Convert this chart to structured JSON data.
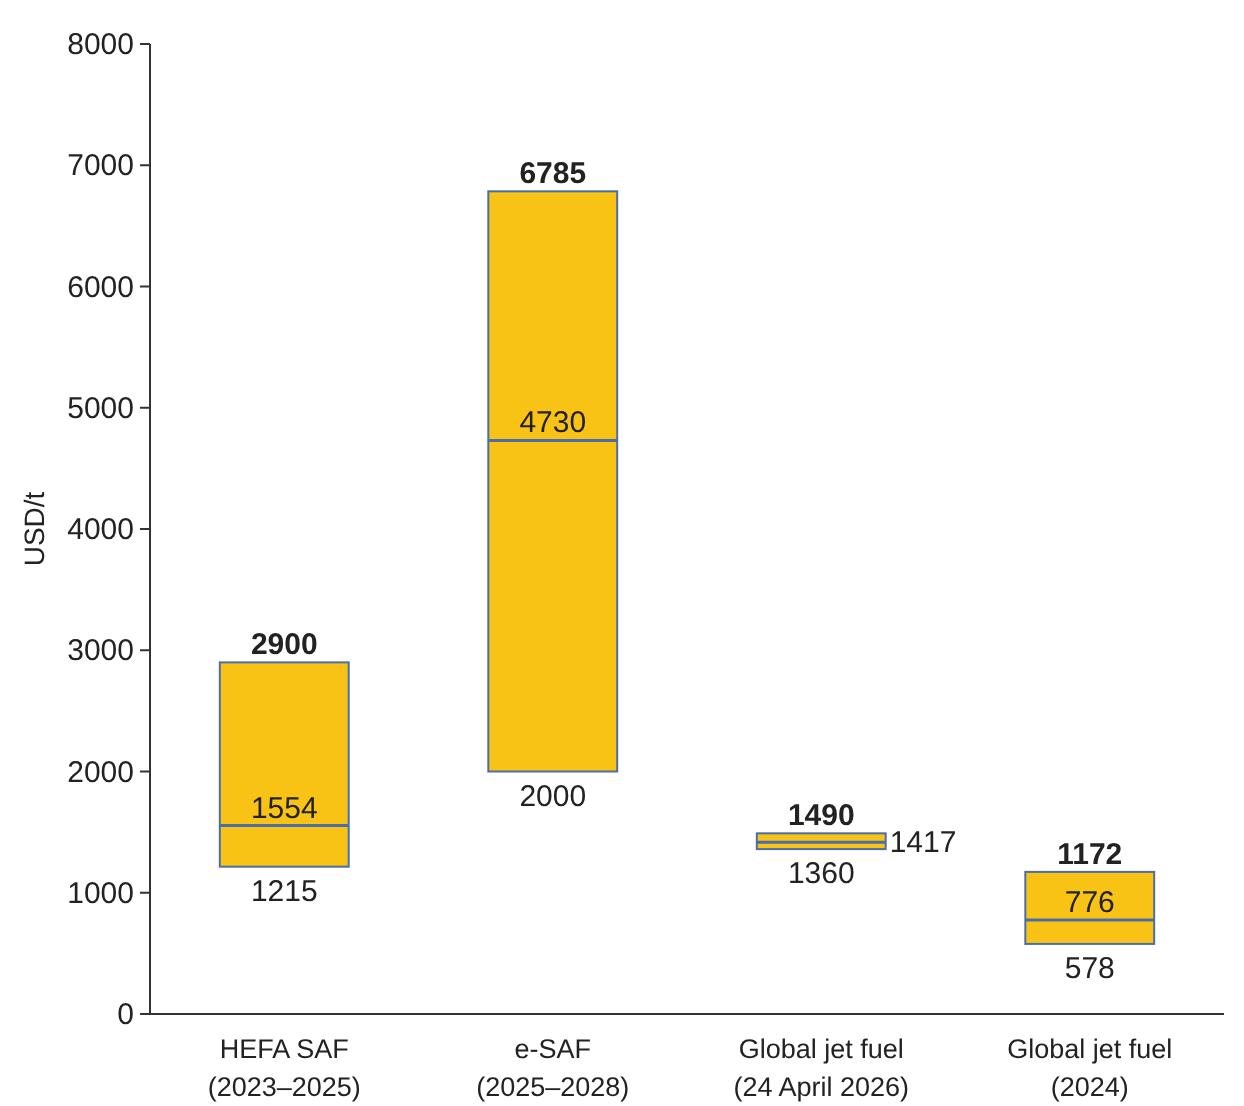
{
  "chart_data": {
    "type": "box",
    "ylabel": "USD/t",
    "categories": [
      "HEFA SAF\n(2023–2025)",
      "e-SAF\n(2025–2028)",
      "Global jet fuel\n(24 April 2026)",
      "Global jet fuel\n(2024)"
    ],
    "boxes": [
      {
        "low": 1215,
        "q1": 1215,
        "median": 1554,
        "q3": 2900,
        "high": 2900
      },
      {
        "low": 2000,
        "q1": 2000,
        "median": 4730,
        "q3": 6785,
        "high": 6785
      },
      {
        "low": 1360,
        "q1": 1360,
        "median": 1417,
        "q3": 1490,
        "high": 1490
      },
      {
        "low": 578,
        "q1": 578,
        "median": 776,
        "q3": 1172,
        "high": 1172
      }
    ],
    "color": "#f8c315",
    "annotations": [
      {
        "text": "2900",
        "x": "HEFA SAF\n(2023–2025)",
        "y": 2900
      },
      {
        "text": "1554",
        "x": "HEFA SAF\n(2023–2025)",
        "y": 1554
      },
      {
        "text": "1215",
        "x": "HEFA SAF\n(2023–2025)",
        "y": 1215
      },
      {
        "text": "6785",
        "x": "e-SAF\n(2025–2028)",
        "y": 6785
      },
      {
        "text": "4730",
        "x": "e-SAF\n(2025–2028)",
        "y": 4730
      },
      {
        "text": "2000",
        "x": "e-SAF\n(2025–2028)",
        "y": 2000
      },
      {
        "text": "1490",
        "x": "Global jet fuel\n(24 April 2026)",
        "y": 1490
      },
      {
        "text": "1417",
        "x": "Global jet fuel\n(24 April 2026)",
        "y": 1417
      },
      {
        "text": "1360",
        "x": "Global jet fuel\n(24 April 2026)",
        "y": 1360
      },
      {
        "text": "1172",
        "x": "Global jet fuel\n(2024)",
        "y": 1172
      },
      {
        "text": "776",
        "x": "Global jet fuel\n(2024)",
        "y": 776
      },
      {
        "text": "578",
        "x": "Global jet fuel\n(2024)",
        "y": 578
      }
    ],
    "ylim": [
      0,
      8000
    ],
    "yticks": [
      0,
      1000,
      2000,
      3000,
      4000,
      5000,
      6000,
      7000,
      8000
    ]
  }
}
